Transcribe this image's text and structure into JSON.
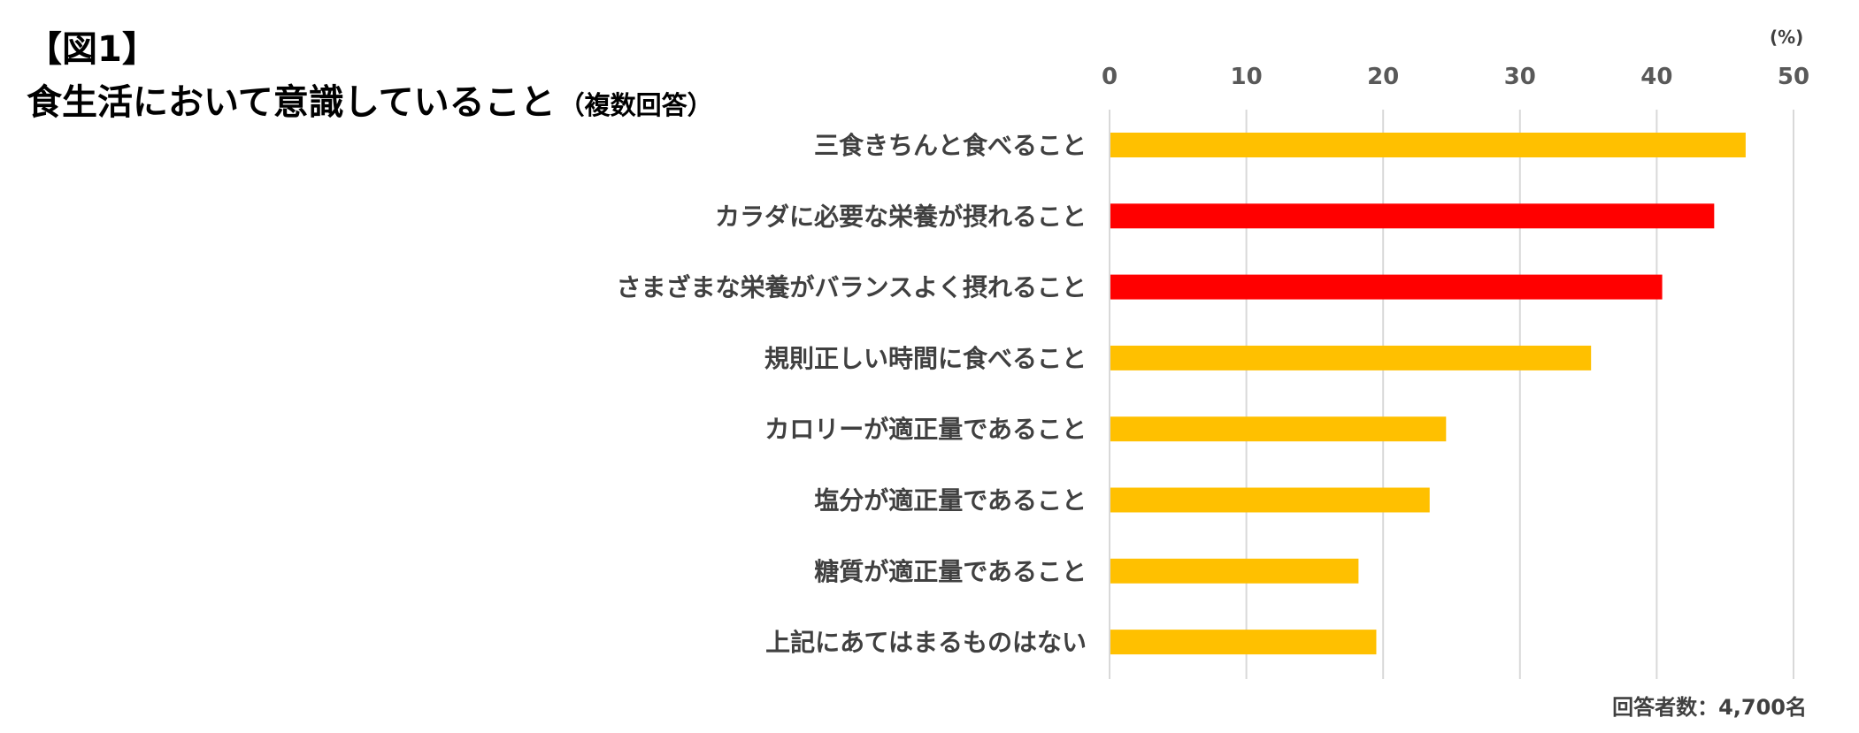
{
  "figure": {
    "label": "【図1】",
    "title": "食生活において意識していること",
    "subtitle": "（複数回答）",
    "unit": "(%)",
    "note": "回答者数：4,700名"
  },
  "colors": {
    "highlight": "#ff0000",
    "normal": "#ffc000",
    "grid": "#d9d9d9",
    "axis_text": "#595959",
    "label_text": "#404040"
  },
  "chart_data": {
    "type": "bar",
    "orientation": "horizontal",
    "title": "食生活において意識していること（複数回答）",
    "xlabel": "(%)",
    "ylabel": "",
    "xlim": [
      0,
      50
    ],
    "xticks": [
      0,
      10,
      20,
      30,
      40,
      50
    ],
    "x_axis_position": "top",
    "grid": true,
    "legend": "none",
    "categories": [
      "三食きちんと食べること",
      "カラダに必要な栄養が摂れること",
      "さまざまな栄養がバランスよく摂れること",
      "規則正しい時間に食べること",
      "カロリーが適正量であること",
      "塩分が適正量であること",
      "糖質が適正量であること",
      "上記にあてはまるものはない"
    ],
    "values": [
      46.5,
      44.2,
      40.4,
      35.2,
      24.6,
      23.4,
      18.2,
      19.5
    ],
    "highlighted": [
      false,
      true,
      true,
      false,
      false,
      false,
      false,
      false
    ]
  }
}
